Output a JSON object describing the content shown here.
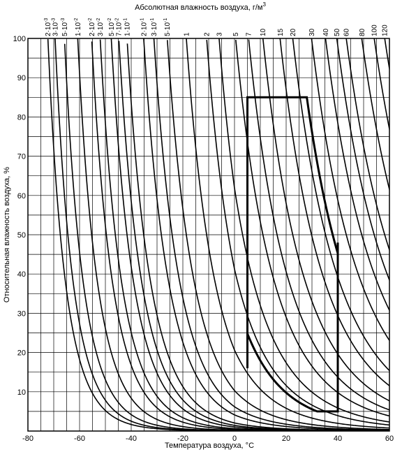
{
  "chart_data": {
    "type": "line",
    "title": "Абсолютная влажность воздуха, г/м³",
    "title_main": "Абсолютная влажность воздуха, г/м",
    "title_sup": "3",
    "xlabel": "Температура воздуха, °C",
    "ylabel": "Относительная влажность воздуха, %",
    "xlim": [
      -80,
      60
    ],
    "ylim": [
      0,
      100
    ],
    "x_ticks": [
      -80,
      -60,
      -40,
      -20,
      0,
      20,
      40,
      60
    ],
    "y_ticks": [
      10,
      20,
      30,
      40,
      50,
      60,
      70,
      80,
      90,
      100
    ],
    "grid": true,
    "grid_x_step": 5,
    "grid_y_lines": [
      5,
      10,
      15,
      20,
      25,
      30,
      35,
      40,
      45,
      50,
      55,
      60,
      65,
      70,
      75,
      80,
      85,
      90,
      95,
      100
    ],
    "curves": [
      {
        "label": "2·10⁻³",
        "base": "2·10",
        "exp": "-3",
        "a": 0.002
      },
      {
        "label": "3·10⁻³",
        "base": "3·10",
        "exp": "-3",
        "a": 0.003
      },
      {
        "label": "5·10⁻³",
        "base": "5·10",
        "exp": "-3",
        "a": 0.005
      },
      {
        "label": "1·10⁻²",
        "base": "1·10",
        "exp": "-2",
        "a": 0.01
      },
      {
        "label": "2·10⁻²",
        "base": "2·10",
        "exp": "-2",
        "a": 0.02
      },
      {
        "label": "3·10⁻²",
        "base": "3·10",
        "exp": "-2",
        "a": 0.03
      },
      {
        "label": "5·10⁻²",
        "base": "5·10",
        "exp": "-2",
        "a": 0.05
      },
      {
        "label": "7·10⁻²",
        "base": "7·10",
        "exp": "-2",
        "a": 0.07
      },
      {
        "label": "1·10⁻¹",
        "base": "1·10",
        "exp": "-1",
        "a": 0.1
      },
      {
        "label": "2·10⁻¹",
        "base": "2·10",
        "exp": "-1",
        "a": 0.2
      },
      {
        "label": "3·10⁻¹",
        "base": "3·10",
        "exp": "-1",
        "a": 0.3
      },
      {
        "label": "5·10⁻¹",
        "base": "5·10",
        "exp": "-1",
        "a": 0.5
      },
      {
        "label": "1",
        "base": "1",
        "exp": "",
        "a": 1
      },
      {
        "label": "2",
        "base": "2",
        "exp": "",
        "a": 2
      },
      {
        "label": "3",
        "base": "3",
        "exp": "",
        "a": 3
      },
      {
        "label": "5",
        "base": "5",
        "exp": "",
        "a": 5
      },
      {
        "label": "7",
        "base": "7",
        "exp": "",
        "a": 7
      },
      {
        "label": "10",
        "base": "10",
        "exp": "",
        "a": 10
      },
      {
        "label": "15",
        "base": "15",
        "exp": "",
        "a": 15
      },
      {
        "label": "20",
        "base": "20",
        "exp": "",
        "a": 20
      },
      {
        "label": "30",
        "base": "30",
        "exp": "",
        "a": 30
      },
      {
        "label": "40",
        "base": "40",
        "exp": "",
        "a": 40
      },
      {
        "label": "50",
        "base": "50",
        "exp": "",
        "a": 50
      },
      {
        "label": "60",
        "base": "60",
        "exp": "",
        "a": 60
      },
      {
        "label": "80",
        "base": "80",
        "exp": "",
        "a": 80
      },
      {
        "label": "100",
        "base": "100",
        "exp": "",
        "a": 100
      },
      {
        "label": "120",
        "base": "120",
        "exp": "",
        "a": 120
      }
    ],
    "region": {
      "points": [
        [
          5,
          85
        ],
        [
          28,
          85
        ],
        [
          40,
          48
        ],
        [
          40,
          5
        ],
        [
          32,
          5
        ],
        [
          5,
          16
        ]
      ]
    }
  }
}
